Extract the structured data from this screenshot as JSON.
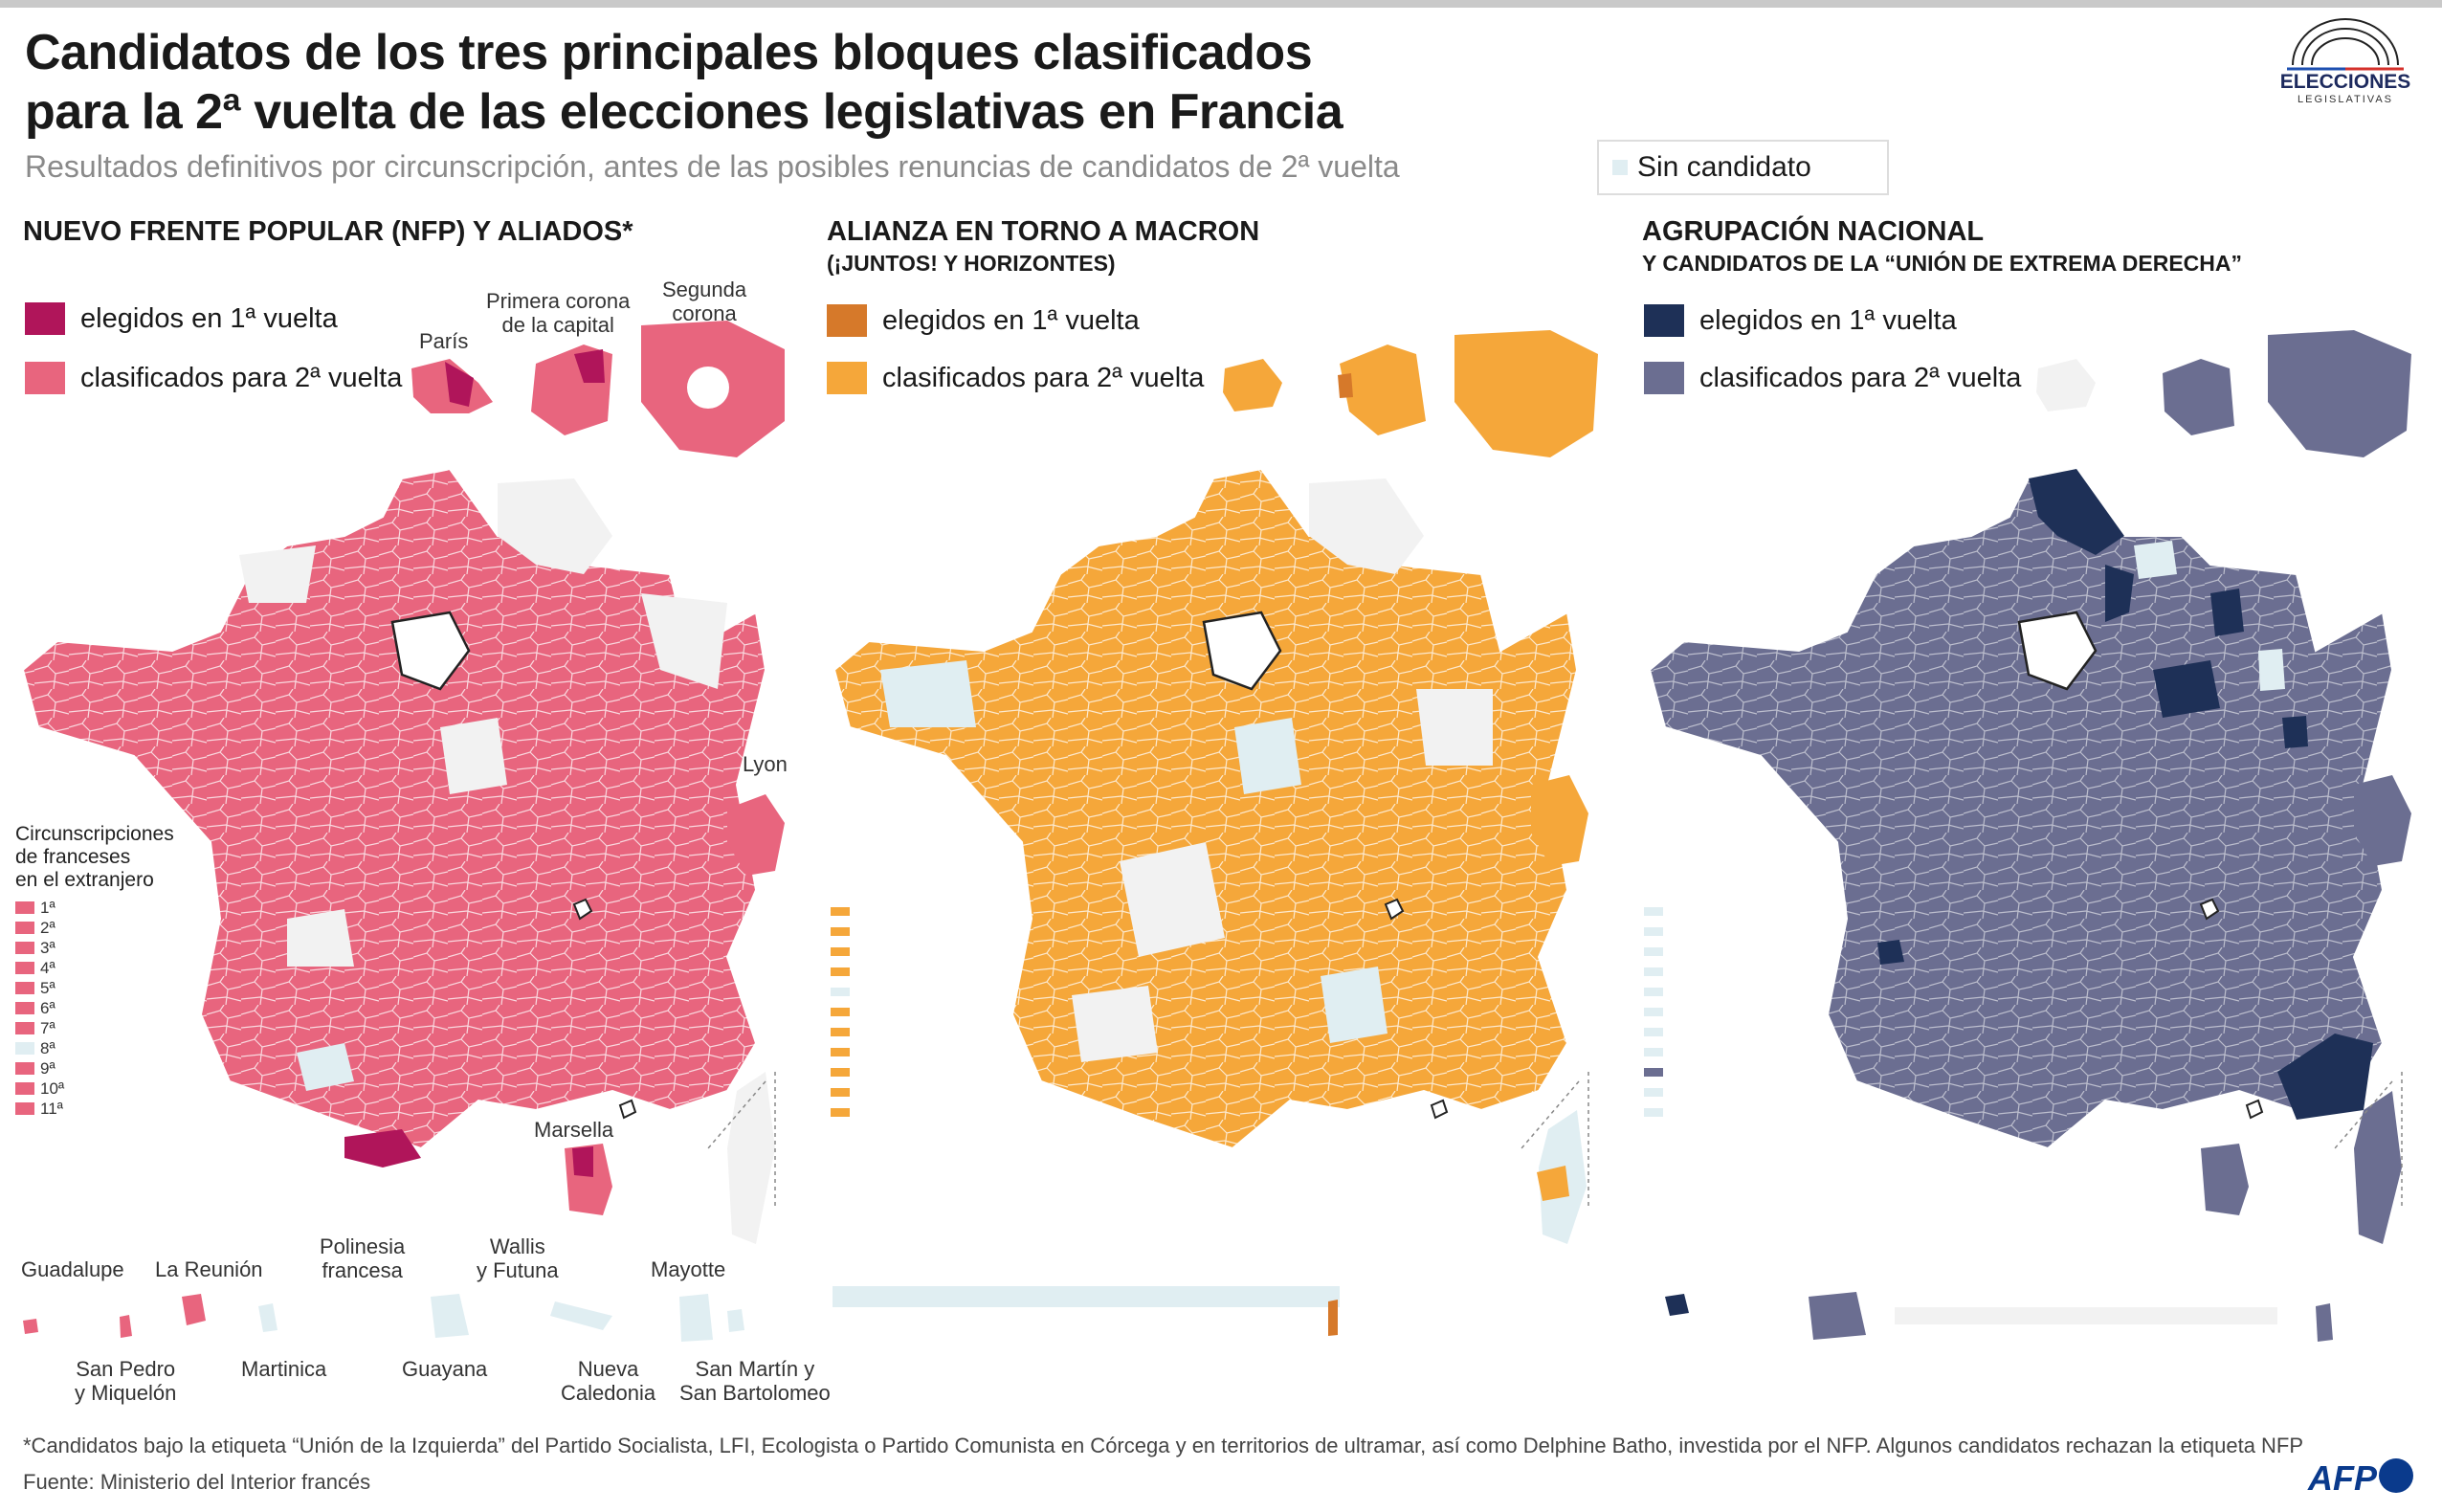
{
  "title_lines": [
    "Candidatos de los tres principales bloques clasificados",
    "para la 2ª vuelta de las elecciones legislativas en Francia"
  ],
  "subtitle": "Resultados definitivos por circunscripción, antes de las posibles renuncias de candidatos de 2ª vuelta",
  "no_candidate_label": "Sin candidato",
  "logo": {
    "title": "ELECCIONES",
    "subtitle": "LEGISLATIVAS"
  },
  "colors": {
    "none": "#e0eef2",
    "nfp_elected": "#b0155a",
    "nfp_runoff": "#e8657e",
    "ens_elected": "#d6792a",
    "ens_runoff": "#f5a73a",
    "rn_elected": "#1e3057",
    "rn_runoff": "#6b6e91",
    "not_shown": "#f2f2f2"
  },
  "panels": [
    {
      "title": "NUEVO FRENTE POPULAR (NFP) Y ALIADOS*",
      "subtitle": "",
      "elected_label": "elegidos en 1ª vuelta",
      "runoff_label": "clasificados para 2ª vuelta"
    },
    {
      "title": "ALIANZA EN TORNO A MACRON",
      "subtitle": "(¡JUNTOS! Y HORIZONTES)",
      "elected_label": "elegidos en 1ª vuelta",
      "runoff_label": "clasificados para 2ª vuelta"
    },
    {
      "title": "AGRUPACIÓN NACIONAL",
      "subtitle": "Y CANDIDATOS DE LA “UNIÓN DE EXTREMA DERECHA”",
      "elected_label": "elegidos en 1ª vuelta",
      "runoff_label": "clasificados para 2ª vuelta"
    }
  ],
  "places": {
    "paris": "París",
    "primera_corona": "Primera corona\nde la capital",
    "segunda_corona": "Segunda\ncorona",
    "lyon": "Lyon",
    "marsella": "Marsella",
    "guadalupe": "Guadalupe",
    "la_reunion": "La Reunión",
    "polinesia": "Polinesia\nfrancesa",
    "wallis": "Wallis\ny Futuna",
    "mayotte": "Mayotte",
    "san_pedro": "San Pedro\ny Miquelón",
    "martinica": "Martinica",
    "guayana": "Guayana",
    "nueva_caledonia": "Nueva\nCaledonia",
    "san_martin": "San Martín y\nSan Bartolomeo"
  },
  "abroad_title": "Circunscripciones\nde franceses\nen el extranjero",
  "abroad_constituencies": [
    {
      "label": "1ª",
      "nfp": "runoff",
      "ens": "runoff",
      "rn": "none"
    },
    {
      "label": "2ª",
      "nfp": "runoff",
      "ens": "runoff",
      "rn": "none"
    },
    {
      "label": "3ª",
      "nfp": "runoff",
      "ens": "runoff",
      "rn": "none"
    },
    {
      "label": "4ª",
      "nfp": "runoff",
      "ens": "runoff",
      "rn": "none"
    },
    {
      "label": "5ª",
      "nfp": "runoff",
      "ens": "none",
      "rn": "none"
    },
    {
      "label": "6ª",
      "nfp": "runoff",
      "ens": "runoff",
      "rn": "none"
    },
    {
      "label": "7ª",
      "nfp": "runoff",
      "ens": "runoff",
      "rn": "none"
    },
    {
      "label": "8ª",
      "nfp": "none",
      "ens": "runoff",
      "rn": "none"
    },
    {
      "label": "9ª",
      "nfp": "runoff",
      "ens": "runoff",
      "rn": "runoff"
    },
    {
      "label": "10ª",
      "nfp": "runoff",
      "ens": "runoff",
      "rn": "none"
    },
    {
      "label": "11ª",
      "nfp": "runoff",
      "ens": "runoff",
      "rn": "none"
    }
  ],
  "footnote": "*Candidatos bajo la etiqueta “Unión de la Izquierda” del Partido Socialista, LFI, Ecologista o Partido Comunista en Córcega y en territorios de ultramar, así como Delphine Batho, investida por el NFP. Algunos candidatos rechazan la etiqueta NFP",
  "source": "Fuente: Ministerio del Interior francés",
  "agency": "AFP"
}
